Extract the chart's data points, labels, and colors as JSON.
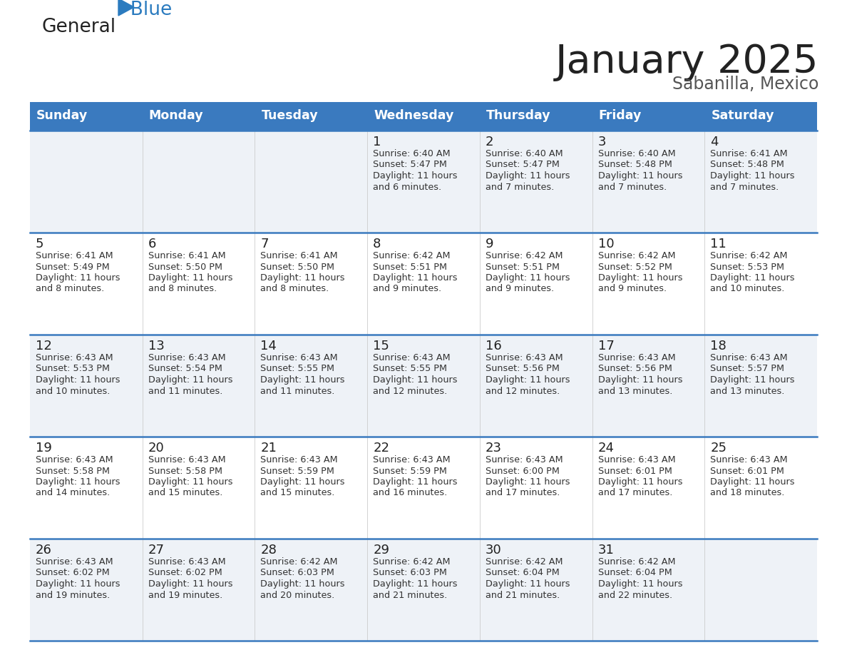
{
  "title": "January 2025",
  "subtitle": "Sabanilla, Mexico",
  "header_color": "#3a7abf",
  "header_text_color": "#ffffff",
  "days_of_week": [
    "Sunday",
    "Monday",
    "Tuesday",
    "Wednesday",
    "Thursday",
    "Friday",
    "Saturday"
  ],
  "bg_color": "#ffffff",
  "cell_bg_even": "#eef2f7",
  "cell_bg_odd": "#ffffff",
  "row_separator_color": "#3a7abf",
  "text_color": "#333333",
  "day_num_color": "#222222",
  "calendar": [
    [
      {
        "day": "",
        "sunrise": "",
        "sunset": "",
        "daylight_h": "",
        "daylight_m": ""
      },
      {
        "day": "",
        "sunrise": "",
        "sunset": "",
        "daylight_h": "",
        "daylight_m": ""
      },
      {
        "day": "",
        "sunrise": "",
        "sunset": "",
        "daylight_h": "",
        "daylight_m": ""
      },
      {
        "day": "1",
        "sunrise": "6:40 AM",
        "sunset": "5:47 PM",
        "daylight_h": "11 hours",
        "daylight_m": "and 6 minutes."
      },
      {
        "day": "2",
        "sunrise": "6:40 AM",
        "sunset": "5:47 PM",
        "daylight_h": "11 hours",
        "daylight_m": "and 7 minutes."
      },
      {
        "day": "3",
        "sunrise": "6:40 AM",
        "sunset": "5:48 PM",
        "daylight_h": "11 hours",
        "daylight_m": "and 7 minutes."
      },
      {
        "day": "4",
        "sunrise": "6:41 AM",
        "sunset": "5:48 PM",
        "daylight_h": "11 hours",
        "daylight_m": "and 7 minutes."
      }
    ],
    [
      {
        "day": "5",
        "sunrise": "6:41 AM",
        "sunset": "5:49 PM",
        "daylight_h": "11 hours",
        "daylight_m": "and 8 minutes."
      },
      {
        "day": "6",
        "sunrise": "6:41 AM",
        "sunset": "5:50 PM",
        "daylight_h": "11 hours",
        "daylight_m": "and 8 minutes."
      },
      {
        "day": "7",
        "sunrise": "6:41 AM",
        "sunset": "5:50 PM",
        "daylight_h": "11 hours",
        "daylight_m": "and 8 minutes."
      },
      {
        "day": "8",
        "sunrise": "6:42 AM",
        "sunset": "5:51 PM",
        "daylight_h": "11 hours",
        "daylight_m": "and 9 minutes."
      },
      {
        "day": "9",
        "sunrise": "6:42 AM",
        "sunset": "5:51 PM",
        "daylight_h": "11 hours",
        "daylight_m": "and 9 minutes."
      },
      {
        "day": "10",
        "sunrise": "6:42 AM",
        "sunset": "5:52 PM",
        "daylight_h": "11 hours",
        "daylight_m": "and 9 minutes."
      },
      {
        "day": "11",
        "sunrise": "6:42 AM",
        "sunset": "5:53 PM",
        "daylight_h": "11 hours",
        "daylight_m": "and 10 minutes."
      }
    ],
    [
      {
        "day": "12",
        "sunrise": "6:43 AM",
        "sunset": "5:53 PM",
        "daylight_h": "11 hours",
        "daylight_m": "and 10 minutes."
      },
      {
        "day": "13",
        "sunrise": "6:43 AM",
        "sunset": "5:54 PM",
        "daylight_h": "11 hours",
        "daylight_m": "and 11 minutes."
      },
      {
        "day": "14",
        "sunrise": "6:43 AM",
        "sunset": "5:55 PM",
        "daylight_h": "11 hours",
        "daylight_m": "and 11 minutes."
      },
      {
        "day": "15",
        "sunrise": "6:43 AM",
        "sunset": "5:55 PM",
        "daylight_h": "11 hours",
        "daylight_m": "and 12 minutes."
      },
      {
        "day": "16",
        "sunrise": "6:43 AM",
        "sunset": "5:56 PM",
        "daylight_h": "11 hours",
        "daylight_m": "and 12 minutes."
      },
      {
        "day": "17",
        "sunrise": "6:43 AM",
        "sunset": "5:56 PM",
        "daylight_h": "11 hours",
        "daylight_m": "and 13 minutes."
      },
      {
        "day": "18",
        "sunrise": "6:43 AM",
        "sunset": "5:57 PM",
        "daylight_h": "11 hours",
        "daylight_m": "and 13 minutes."
      }
    ],
    [
      {
        "day": "19",
        "sunrise": "6:43 AM",
        "sunset": "5:58 PM",
        "daylight_h": "11 hours",
        "daylight_m": "and 14 minutes."
      },
      {
        "day": "20",
        "sunrise": "6:43 AM",
        "sunset": "5:58 PM",
        "daylight_h": "11 hours",
        "daylight_m": "and 15 minutes."
      },
      {
        "day": "21",
        "sunrise": "6:43 AM",
        "sunset": "5:59 PM",
        "daylight_h": "11 hours",
        "daylight_m": "and 15 minutes."
      },
      {
        "day": "22",
        "sunrise": "6:43 AM",
        "sunset": "5:59 PM",
        "daylight_h": "11 hours",
        "daylight_m": "and 16 minutes."
      },
      {
        "day": "23",
        "sunrise": "6:43 AM",
        "sunset": "6:00 PM",
        "daylight_h": "11 hours",
        "daylight_m": "and 17 minutes."
      },
      {
        "day": "24",
        "sunrise": "6:43 AM",
        "sunset": "6:01 PM",
        "daylight_h": "11 hours",
        "daylight_m": "and 17 minutes."
      },
      {
        "day": "25",
        "sunrise": "6:43 AM",
        "sunset": "6:01 PM",
        "daylight_h": "11 hours",
        "daylight_m": "and 18 minutes."
      }
    ],
    [
      {
        "day": "26",
        "sunrise": "6:43 AM",
        "sunset": "6:02 PM",
        "daylight_h": "11 hours",
        "daylight_m": "and 19 minutes."
      },
      {
        "day": "27",
        "sunrise": "6:43 AM",
        "sunset": "6:02 PM",
        "daylight_h": "11 hours",
        "daylight_m": "and 19 minutes."
      },
      {
        "day": "28",
        "sunrise": "6:42 AM",
        "sunset": "6:03 PM",
        "daylight_h": "11 hours",
        "daylight_m": "and 20 minutes."
      },
      {
        "day": "29",
        "sunrise": "6:42 AM",
        "sunset": "6:03 PM",
        "daylight_h": "11 hours",
        "daylight_m": "and 21 minutes."
      },
      {
        "day": "30",
        "sunrise": "6:42 AM",
        "sunset": "6:04 PM",
        "daylight_h": "11 hours",
        "daylight_m": "and 21 minutes."
      },
      {
        "day": "31",
        "sunrise": "6:42 AM",
        "sunset": "6:04 PM",
        "daylight_h": "11 hours",
        "daylight_m": "and 22 minutes."
      },
      {
        "day": "",
        "sunrise": "",
        "sunset": "",
        "daylight_h": "",
        "daylight_m": ""
      }
    ]
  ],
  "logo_general_color": "#222222",
  "logo_blue_color": "#2b7bbf",
  "logo_triangle_color": "#2b7bbf",
  "title_color": "#222222",
  "subtitle_color": "#555555"
}
